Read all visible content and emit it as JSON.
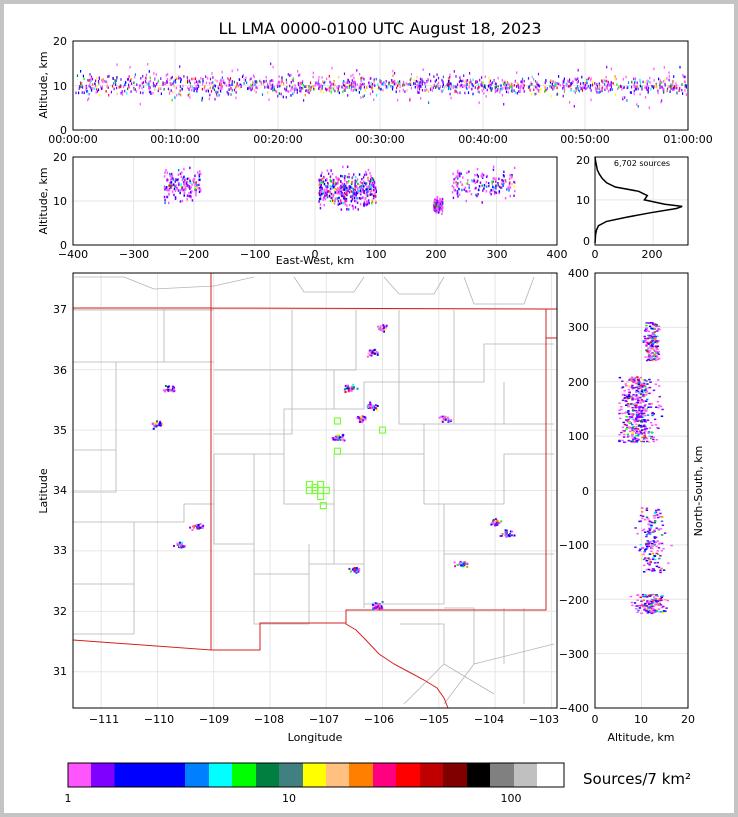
{
  "title": "LL LMA 0000-0100 UTC August 18, 2023",
  "time_panel": {
    "ylabel": "Altitude, km",
    "yticks": [
      "0",
      "10",
      "20"
    ],
    "xticks": [
      "00:00:00",
      "00:10:00",
      "00:20:00",
      "00:30:00",
      "00:40:00",
      "00:50:00",
      "01:00:00"
    ]
  },
  "ew_panel": {
    "ylabel": "Altitude, km",
    "xlabel": "East-West, km",
    "xticks": [
      "−400",
      "−300",
      "−200",
      "−100",
      "0",
      "100",
      "200",
      "300",
      "400"
    ],
    "yticks": [
      "0",
      "10",
      "20"
    ]
  },
  "hist_panel": {
    "annotation": "6,702 sources",
    "xticks": [
      "0",
      "200"
    ],
    "yticks": [
      "0",
      "10",
      "20"
    ]
  },
  "map_panel": {
    "xlabel": "Longitude",
    "ylabel": "Latitude",
    "xticks": [
      "−111",
      "−110",
      "−109",
      "−108",
      "−107",
      "−106",
      "−105",
      "−104",
      "−103"
    ],
    "yticks": [
      "37",
      "36",
      "35",
      "34",
      "33",
      "32",
      "31"
    ],
    "state_border_color": "#d62020",
    "station_color": "#7cfc3c"
  },
  "ns_panel": {
    "xlabel": "Altitude, km",
    "ylabel": "North-South, km",
    "yticks": [
      "400",
      "300",
      "200",
      "100",
      "0",
      "−100",
      "−200",
      "−300",
      "−400"
    ],
    "xticks": [
      "0",
      "10",
      "20"
    ]
  },
  "colorbar": {
    "label": "Sources/7 km²",
    "ticks": [
      "1",
      "10",
      "100"
    ],
    "colors": [
      "#ff55ff",
      "#8000ff",
      "#8000ff",
      "#0000ff",
      "#0000ff",
      "#0080ff",
      "#00ffff",
      "#00ff00",
      "#008040",
      "#408080",
      "#ffff00",
      "#ffc080",
      "#ff8000",
      "#ff0080",
      "#ff0000",
      "#c00000",
      "#800000",
      "#000000",
      "#808080",
      "#c0c0c0",
      "#ffffff"
    ]
  },
  "chart_data": {
    "type": "scatter",
    "title": "LL LMA 0000-0100 UTC August 18, 2023",
    "total_sources": 6702,
    "time_altitude": {
      "xlim": [
        "00:00:00",
        "01:00:00"
      ],
      "ylim": [
        0,
        20
      ],
      "ylabel": "Altitude, km"
    },
    "ew_altitude": {
      "xlim": [
        -400,
        400
      ],
      "ylim": [
        0,
        20
      ],
      "xlabel": "East-West, km",
      "ylabel": "Altitude, km",
      "clusters": [
        {
          "x": [
            -250,
            -190
          ],
          "z": [
            7,
            20
          ]
        },
        {
          "x": [
            5,
            100
          ],
          "z": [
            5,
            20
          ]
        },
        {
          "x": [
            195,
            210
          ],
          "z": [
            6,
            12
          ]
        },
        {
          "x": [
            225,
            330
          ],
          "z": [
            8,
            20
          ]
        }
      ]
    },
    "altitude_histogram": {
      "xlim": [
        0,
        320
      ],
      "ylim": [
        0,
        20
      ],
      "altitude_km": [
        0,
        2,
        3,
        4,
        5,
        6,
        7,
        8,
        8.5,
        9,
        10,
        11,
        12,
        13,
        14,
        15,
        16,
        17,
        18,
        19,
        20
      ],
      "sources": [
        0,
        2,
        5,
        12,
        40,
        110,
        190,
        280,
        300,
        240,
        170,
        180,
        150,
        70,
        40,
        25,
        15,
        8,
        5,
        2,
        0
      ]
    },
    "plan_view": {
      "xlim": [
        -111.5,
        -102.9
      ],
      "ylim": [
        30.4,
        37.6
      ],
      "xlabel": "Longitude",
      "ylabel": "Latitude",
      "clusters": [
        {
          "lon": -109.8,
          "lat": 35.7
        },
        {
          "lon": -110.0,
          "lat": 35.1
        },
        {
          "lon": -109.6,
          "lat": 33.1
        },
        {
          "lon": -109.3,
          "lat": 33.4
        },
        {
          "lon": -106.6,
          "lat": 35.7
        },
        {
          "lon": -106.4,
          "lat": 35.2
        },
        {
          "lon": -106.2,
          "lat": 35.4
        },
        {
          "lon": -106.8,
          "lat": 34.9
        },
        {
          "lon": -104.9,
          "lat": 35.2
        },
        {
          "lon": -106.2,
          "lat": 36.3
        },
        {
          "lon": -106.0,
          "lat": 36.7
        },
        {
          "lon": -106.1,
          "lat": 32.1
        },
        {
          "lon": -106.5,
          "lat": 32.7
        },
        {
          "lon": -104.0,
          "lat": 33.5
        },
        {
          "lon": -104.6,
          "lat": 32.8
        },
        {
          "lon": -103.8,
          "lat": 33.3
        }
      ],
      "stations": [
        {
          "lon": -107.3,
          "lat": 34.0
        },
        {
          "lon": -107.2,
          "lat": 34.0
        },
        {
          "lon": -107.1,
          "lat": 34.0
        },
        {
          "lon": -107.0,
          "lat": 34.0
        },
        {
          "lon": -107.1,
          "lat": 34.1
        },
        {
          "lon": -107.1,
          "lat": 33.9
        },
        {
          "lon": -107.05,
          "lat": 33.75
        },
        {
          "lon": -107.3,
          "lat": 34.1
        },
        {
          "lon": -106.8,
          "lat": 34.65
        },
        {
          "lon": -106.8,
          "lat": 35.15
        },
        {
          "lon": -106.0,
          "lat": 35.0
        },
        {
          "lon": -107.2,
          "lat": 34.05
        }
      ]
    },
    "ns_altitude": {
      "xlim": [
        0,
        20
      ],
      "ylim": [
        -400,
        400
      ],
      "xlabel": "Altitude, km",
      "ylabel": "North-South, km",
      "clusters": [
        {
          "y": [
            90,
            210
          ],
          "z": [
            5,
            20
          ]
        },
        {
          "y": [
            240,
            310
          ],
          "z": [
            9,
            15
          ]
        },
        {
          "y": [
            -150,
            -30
          ],
          "z": [
            8,
            20
          ]
        },
        {
          "y": [
            -225,
            -190
          ],
          "z": [
            6,
            20
          ]
        }
      ]
    }
  }
}
